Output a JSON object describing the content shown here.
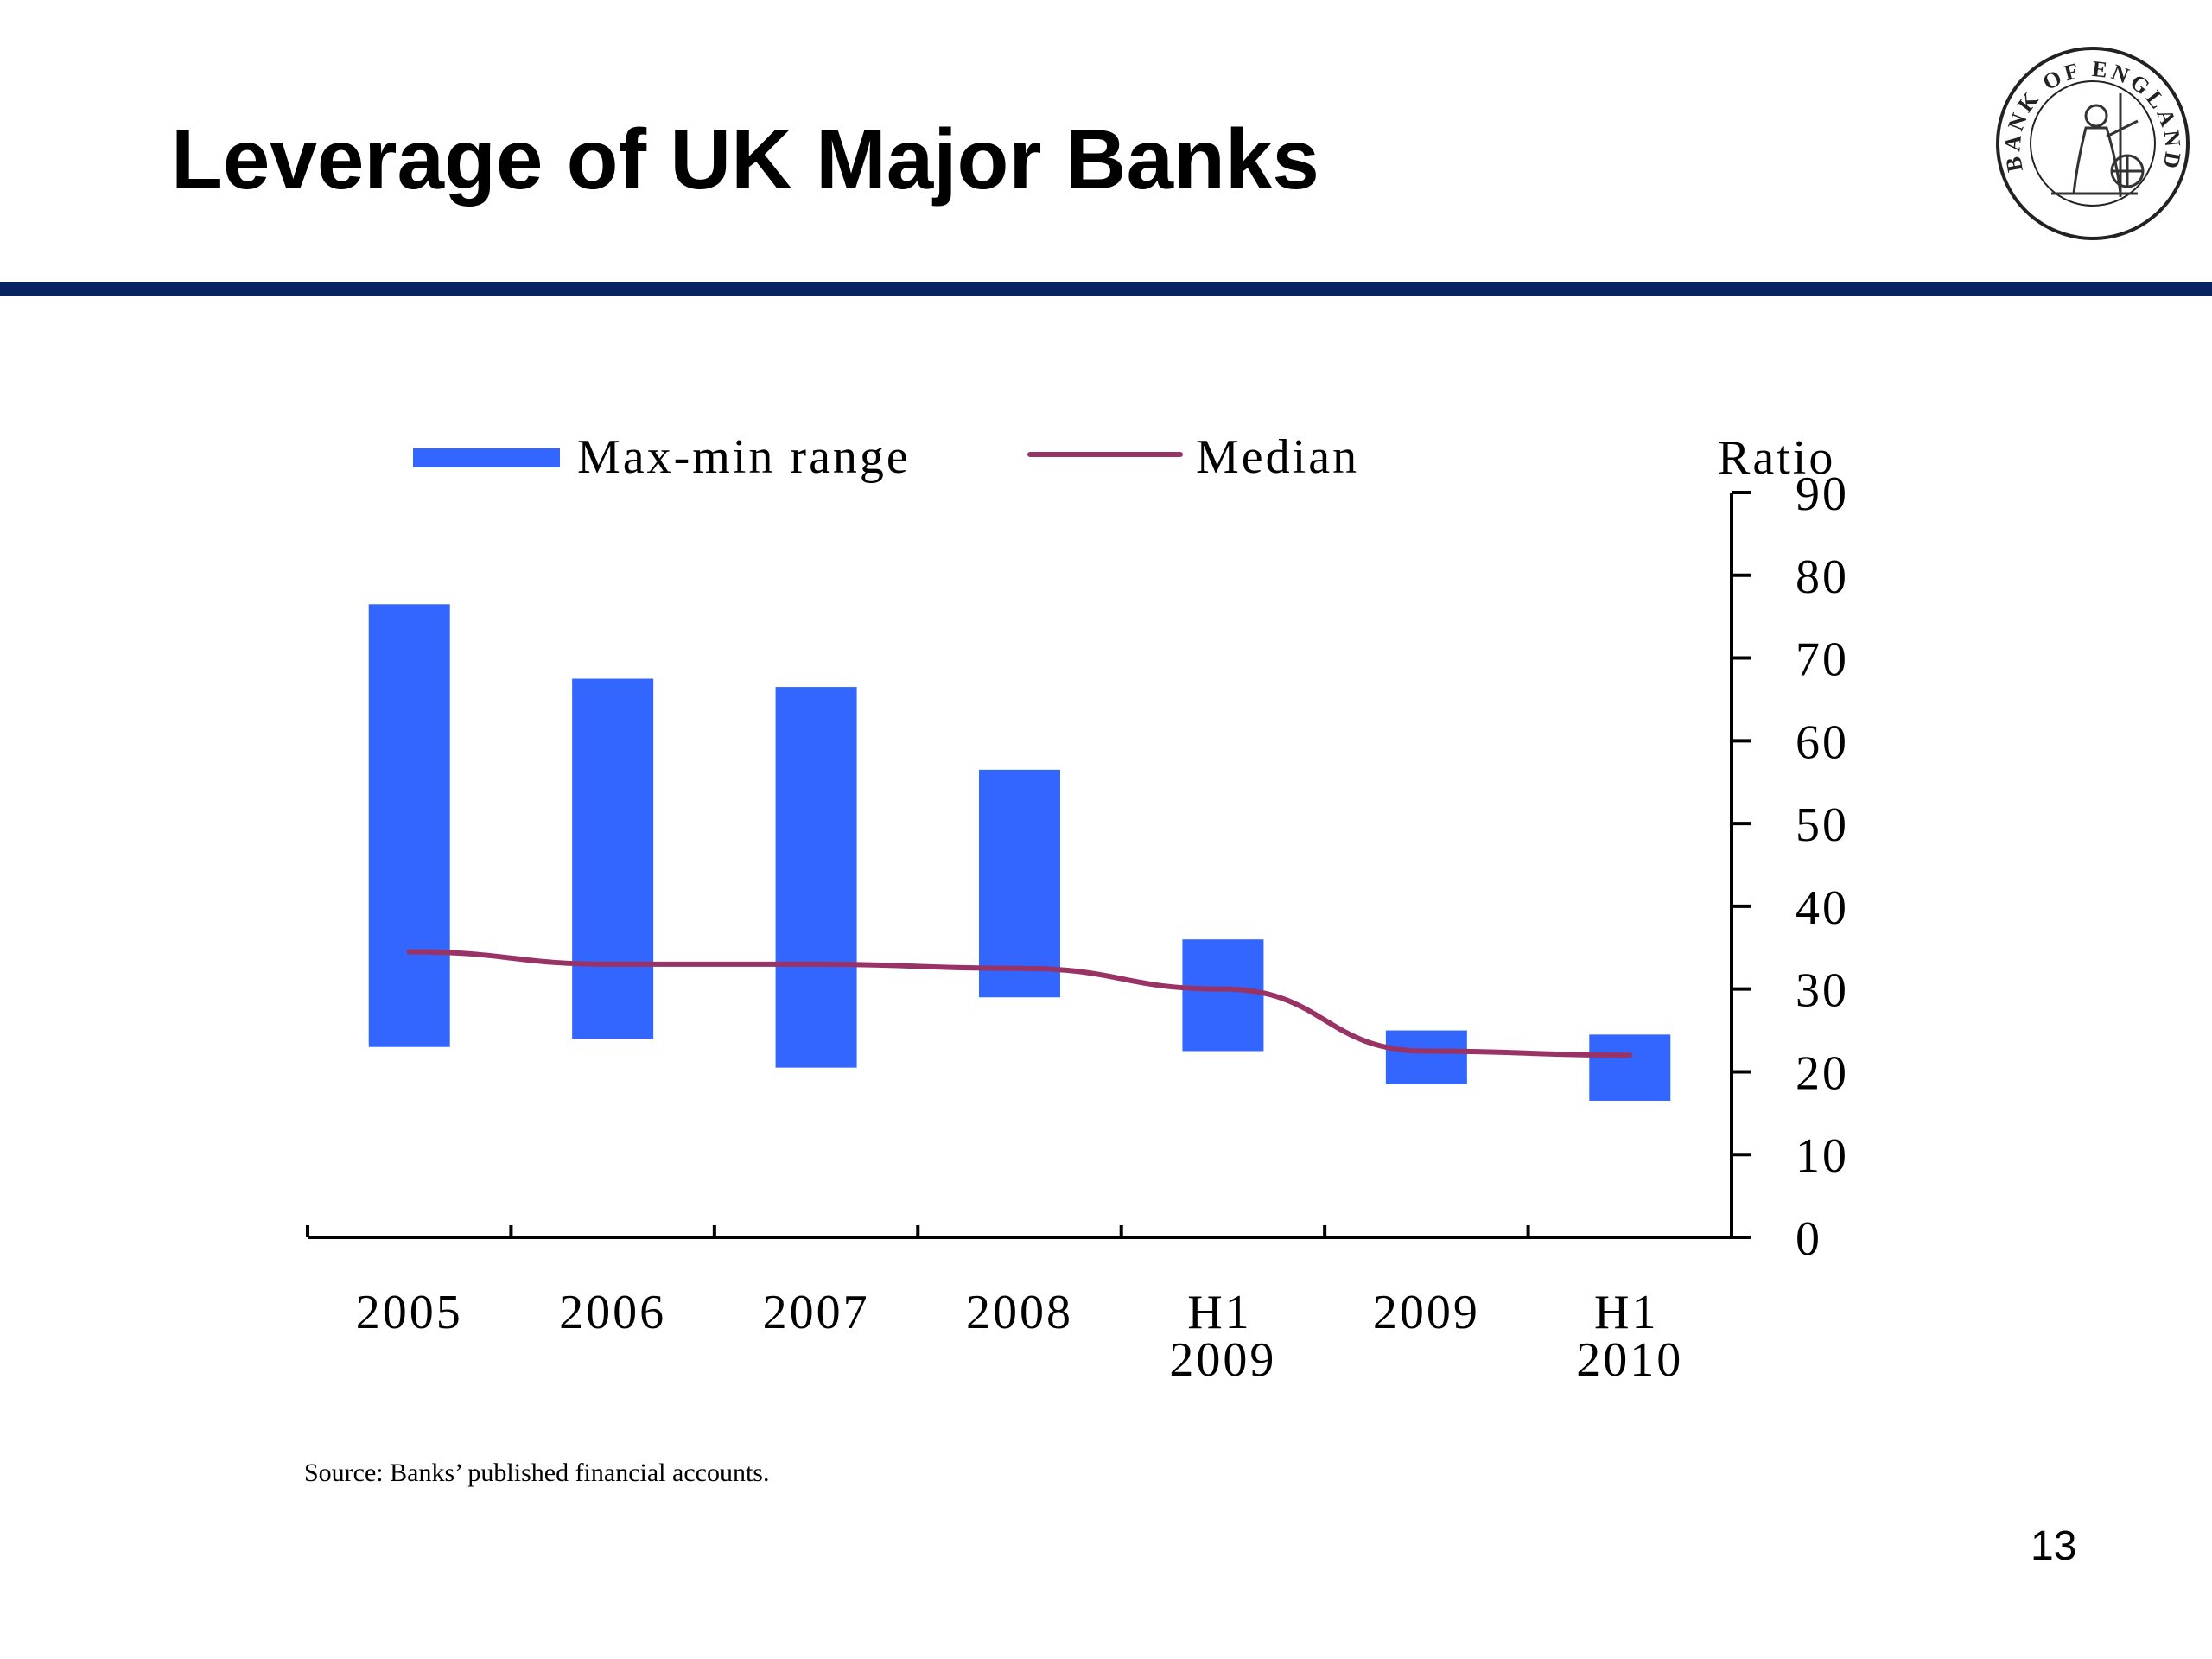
{
  "slide": {
    "title": "Leverage of UK Major Banks",
    "source": "Source: Banks’ published financial accounts.",
    "page_number": "13",
    "rule_color": "#0a2463",
    "logo_text": "BANK OF ENGLAND"
  },
  "chart_data": {
    "type": "bar",
    "title": "",
    "xlabel": "",
    "ylabel": "Ratio",
    "ylim": [
      0,
      90
    ],
    "yticks": [
      0,
      10,
      20,
      30,
      40,
      50,
      60,
      70,
      80,
      90
    ],
    "y_axis_position": "right",
    "grid": false,
    "legend_position": "top",
    "categories": [
      "2005",
      "2006",
      "2007",
      "2008",
      "H1 2009",
      "2009",
      "H1 2010"
    ],
    "category_lines": [
      [
        "2005"
      ],
      [
        "2006"
      ],
      [
        "2007"
      ],
      [
        "2008"
      ],
      [
        "H1",
        "2009"
      ],
      [
        "2009"
      ],
      [
        "H1",
        "2010"
      ]
    ],
    "series": [
      {
        "name": "Max-min range",
        "type": "floating-bar",
        "color": "#3366ff",
        "min": [
          23,
          24,
          20.5,
          29,
          22.5,
          18.5,
          16.5
        ],
        "max": [
          76.5,
          67.5,
          66.5,
          56.5,
          36,
          25,
          24.5
        ]
      },
      {
        "name": "Median",
        "type": "line",
        "color": "#993366",
        "values": [
          34.5,
          33,
          33,
          32.5,
          30,
          22.5,
          22
        ]
      }
    ]
  }
}
